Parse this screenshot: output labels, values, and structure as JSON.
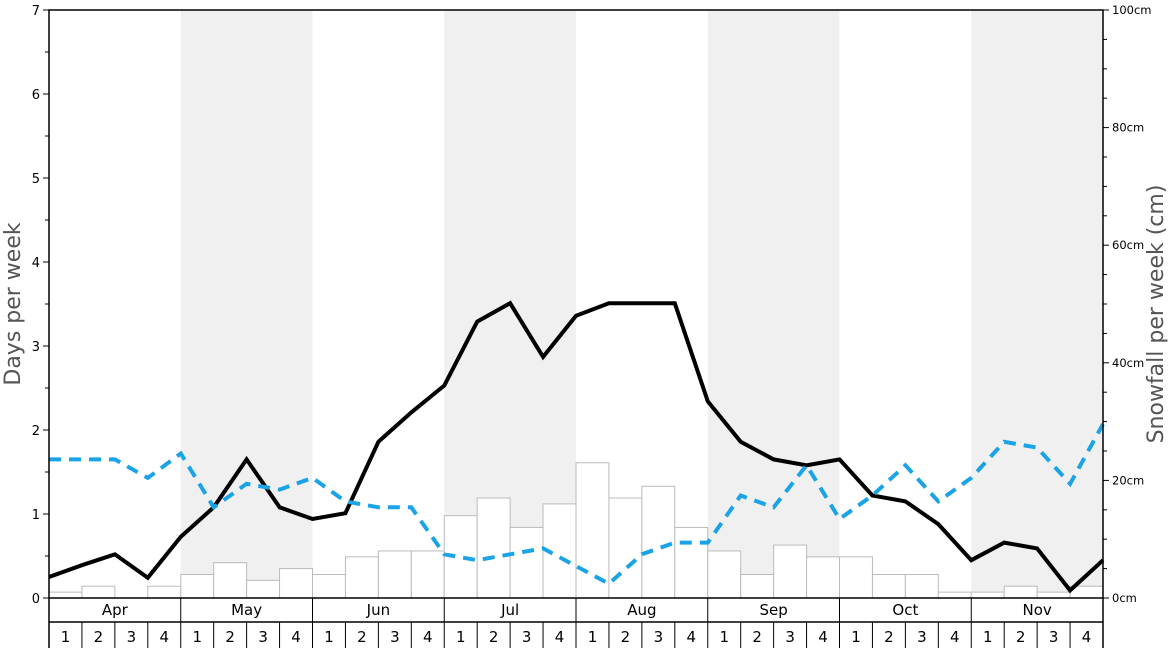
{
  "chart_data": {
    "type": "bar+line",
    "title": "",
    "ylabel_left": "Days per week",
    "ylabel_right": "Snowfall per week (cm)",
    "ylim_left": [
      0,
      7
    ],
    "ylim_right": [
      0,
      100
    ],
    "left_ticks": [
      "0",
      "1",
      "2",
      "3",
      "4",
      "5",
      "6",
      "7"
    ],
    "right_ticks": [
      "0cm",
      "20cm",
      "40cm",
      "60cm",
      "80cm",
      "100cm"
    ],
    "months": [
      "Apr",
      "May",
      "Jun",
      "Jul",
      "Aug",
      "Sep",
      "Oct",
      "Nov"
    ],
    "weeks": [
      "1",
      "2",
      "3",
      "4"
    ],
    "series": [
      {
        "name": "",
        "kind": "bar",
        "axis": "right",
        "color": "#ffffff",
        "stroke": "#bbbbbb",
        "values": [
          1,
          2,
          0,
          2,
          4,
          6,
          3,
          5,
          4,
          7,
          8,
          8,
          14,
          17,
          12,
          16,
          23,
          17,
          19,
          12,
          8,
          4,
          9,
          7,
          7,
          4,
          4,
          1,
          1,
          2,
          1,
          2
        ]
      },
      {
        "name": "",
        "kind": "line",
        "axis": "left",
        "color": "#000000",
        "dash": false,
        "values": [
          0.25,
          0.39,
          0.52,
          0.24,
          0.73,
          1.08,
          1.65,
          1.08,
          0.94,
          1.01,
          1.86,
          2.21,
          2.53,
          3.29,
          3.51,
          2.87,
          3.36,
          3.51,
          3.51,
          3.51,
          2.34,
          1.86,
          1.65,
          1.58,
          1.65,
          1.22,
          1.15,
          0.88,
          0.45,
          0.66,
          0.59,
          0.09,
          0.45
        ]
      },
      {
        "name": "",
        "kind": "line",
        "axis": "left",
        "color": "#1aa3e6",
        "dash": true,
        "values": [
          1.65,
          1.65,
          1.65,
          1.43,
          1.72,
          1.08,
          1.36,
          1.29,
          1.43,
          1.15,
          1.08,
          1.08,
          0.52,
          0.45,
          0.52,
          0.59,
          0.38,
          0.17,
          0.52,
          0.66,
          0.66,
          1.22,
          1.08,
          1.58,
          0.94,
          1.22,
          1.58,
          1.15,
          1.43,
          1.86,
          1.79,
          1.36,
          2.07
        ]
      }
    ],
    "shaded_months": [
      "May",
      "Jul",
      "Sep",
      "Nov"
    ]
  }
}
